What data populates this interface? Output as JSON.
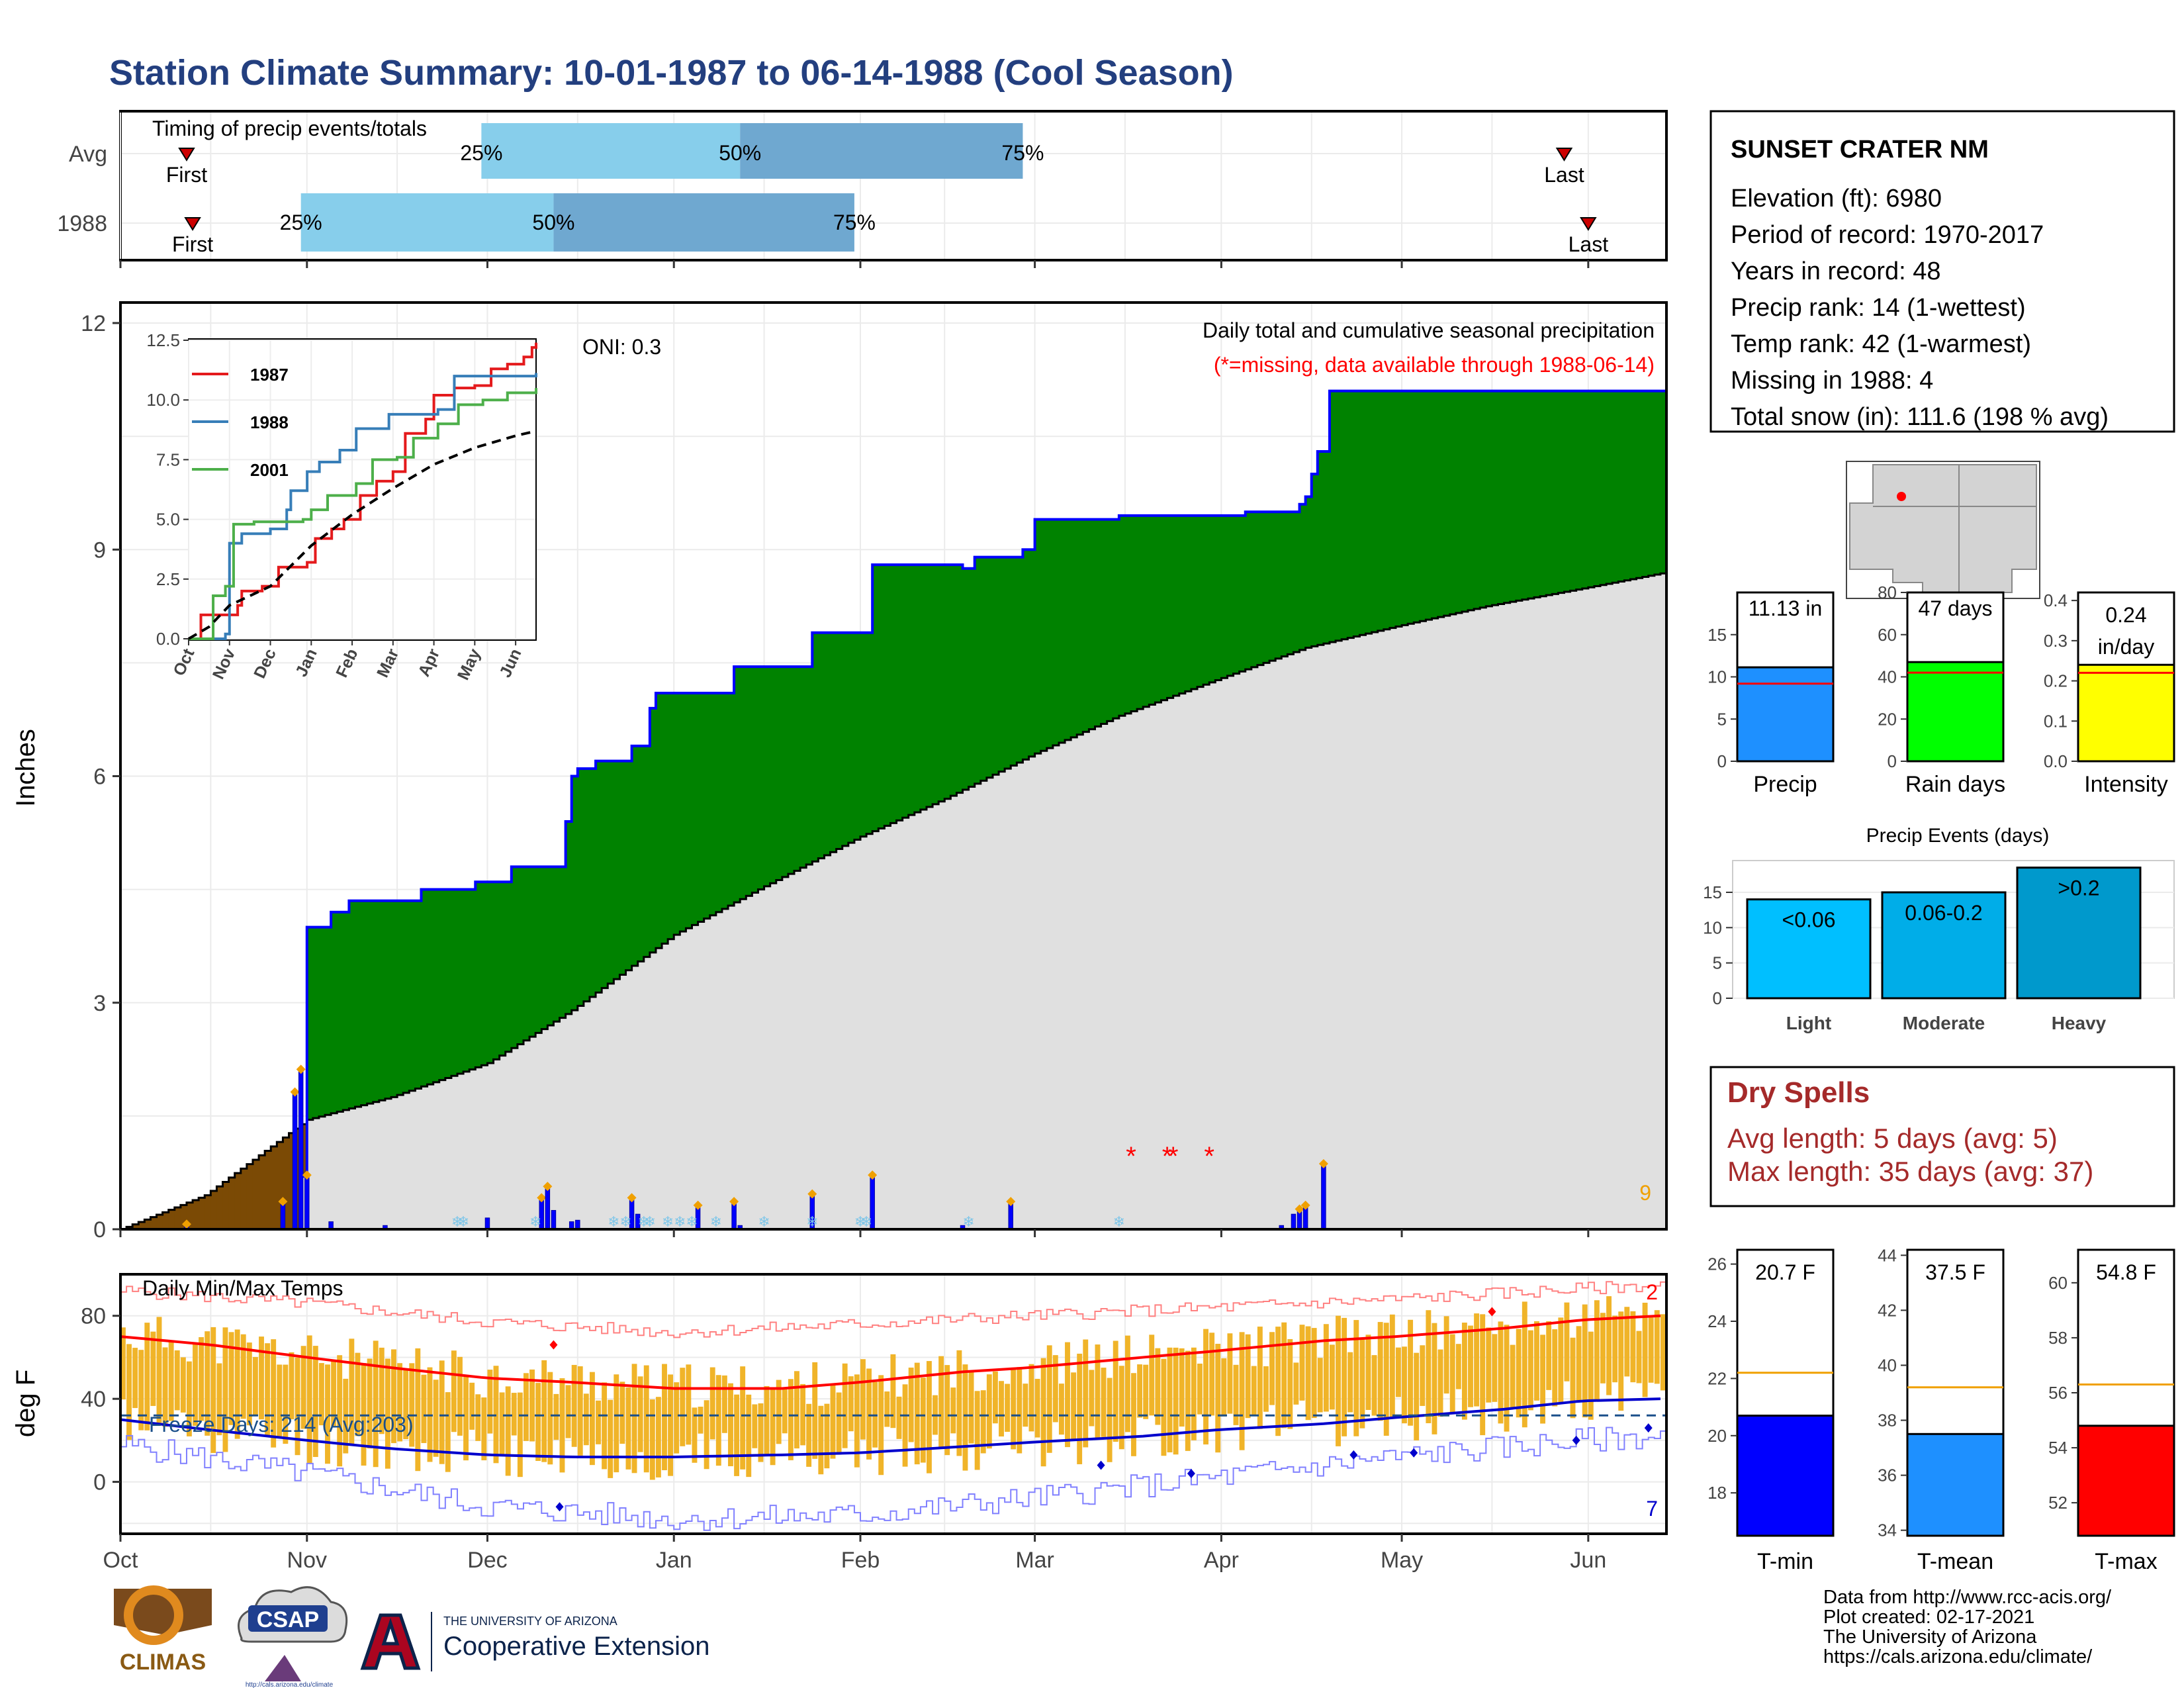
{
  "title": "Station Climate Summary: 10-01-1987 to 06-14-1988 (Cool Season)",
  "colors": {
    "title": "#233f7f",
    "green": "#008200",
    "brown": "#7b4a05",
    "gray_area": "#e0e0e0",
    "blue_bar": "#0000ff",
    "light_blue": "#87ceeb",
    "mid_blue": "#6fa8d0",
    "orange": "#f0a000",
    "red": "#ff0000",
    "dry_red": "#a52a2a"
  },
  "timing": {
    "title": "Timing of precip events/totals",
    "rows": [
      {
        "label": "Avg",
        "first_label": "First",
        "last_label": "Last",
        "first": "1987-10-12",
        "p25": "1987-11-30",
        "p50": "1988-01-12",
        "p75": "1988-02-28",
        "last": "1988-05-28"
      },
      {
        "label": "1988",
        "first_label": "First",
        "last_label": "Last",
        "first": "1987-10-13",
        "p25": "1987-10-31",
        "p50": "1987-12-12",
        "p75": "1988-01-31",
        "last": "1988-06-01"
      }
    ],
    "pct_labels": [
      "25%",
      "50%",
      "75%"
    ]
  },
  "station": {
    "name": "SUNSET CRATER NM",
    "lines": [
      "Elevation (ft): 6980",
      "Period of record: 1970-2017",
      "Years in record: 48",
      "Precip rank: 14 (1-wettest)",
      "Temp rank: 42 (1-warmest)",
      "Missing in 1988: 4",
      "Total snow (in): 111.6 (198 % avg)"
    ]
  },
  "chart_data": [
    {
      "id": "precip_main",
      "type": "area",
      "ylabel": "Inches",
      "ylim": [
        0,
        12
      ],
      "yticks": [
        0,
        3,
        6,
        9,
        12
      ],
      "x_months": [
        "Oct",
        "Nov",
        "Dec",
        "Jan",
        "Feb",
        "Mar",
        "Apr",
        "May",
        "Jun"
      ],
      "annotation_title": "Daily total and cumulative seasonal precipitation",
      "annotation_missing": "(*=missing, data available through 1988-06-14)",
      "oni": "ONI: 0.3",
      "corner_count": "9",
      "cumulative_1988": [
        [
          "1987-10-01",
          0
        ],
        [
          "1987-10-30",
          0
        ],
        [
          "1987-10-31",
          0.7
        ],
        [
          "1987-11-01",
          4.0
        ],
        [
          "1987-11-04",
          4.0
        ],
        [
          "1987-11-05",
          4.2
        ],
        [
          "1987-11-08",
          4.35
        ],
        [
          "1987-11-20",
          4.5
        ],
        [
          "1987-11-29",
          4.6
        ],
        [
          "1987-12-05",
          4.8
        ],
        [
          "1987-12-14",
          5.4
        ],
        [
          "1987-12-15",
          6.0
        ],
        [
          "1987-12-16",
          6.1
        ],
        [
          "1987-12-19",
          6.2
        ],
        [
          "1987-12-25",
          6.4
        ],
        [
          "1987-12-28",
          6.9
        ],
        [
          "1987-12-29",
          7.1
        ],
        [
          "1988-01-06",
          7.1
        ],
        [
          "1988-01-11",
          7.45
        ],
        [
          "1988-01-23",
          7.45
        ],
        [
          "1988-01-24",
          7.9
        ],
        [
          "1988-02-02",
          7.9
        ],
        [
          "1988-02-03",
          8.8
        ],
        [
          "1988-02-18",
          8.75
        ],
        [
          "1988-02-20",
          8.9
        ],
        [
          "1988-02-28",
          9.0
        ],
        [
          "1988-03-01",
          9.4
        ],
        [
          "1988-03-15",
          9.45
        ],
        [
          "1988-04-05",
          9.5
        ],
        [
          "1988-04-14",
          9.6
        ],
        [
          "1988-04-15",
          9.7
        ],
        [
          "1988-04-16",
          10.0
        ],
        [
          "1988-04-17",
          10.3
        ],
        [
          "1988-04-18",
          10.3
        ],
        [
          "1988-04-19",
          11.1
        ],
        [
          "1988-06-14",
          11.13
        ]
      ],
      "avg_cumulative": [
        [
          "1987-10-01",
          0
        ],
        [
          "1987-10-15",
          0.45
        ],
        [
          "1987-11-01",
          1.45
        ],
        [
          "1987-11-15",
          1.75
        ],
        [
          "1987-12-01",
          2.2
        ],
        [
          "1987-12-15",
          2.9
        ],
        [
          "1988-01-01",
          3.9
        ],
        [
          "1988-01-15",
          4.5
        ],
        [
          "1988-02-01",
          5.2
        ],
        [
          "1988-02-15",
          5.7
        ],
        [
          "1988-03-01",
          6.3
        ],
        [
          "1988-03-15",
          6.8
        ],
        [
          "1988-04-01",
          7.3
        ],
        [
          "1988-04-15",
          7.7
        ],
        [
          "1988-05-01",
          8.0
        ],
        [
          "1988-05-15",
          8.25
        ],
        [
          "1988-06-01",
          8.5
        ],
        [
          "1988-06-14",
          8.7
        ]
      ],
      "daily_bars": [
        [
          "1987-10-12",
          0.05
        ],
        [
          "1987-10-28",
          0.35
        ],
        [
          "1987-10-30",
          1.8
        ],
        [
          "1987-10-31",
          2.1
        ],
        [
          "1987-11-01",
          0.7
        ],
        [
          "1987-11-05",
          0.1
        ],
        [
          "1987-11-14",
          0.05
        ],
        [
          "1987-12-01",
          0.15
        ],
        [
          "1987-12-10",
          0.4
        ],
        [
          "1987-12-11",
          0.55
        ],
        [
          "1987-12-12",
          0.25
        ],
        [
          "1987-12-15",
          0.1
        ],
        [
          "1987-12-16",
          0.12
        ],
        [
          "1987-12-25",
          0.4
        ],
        [
          "1987-12-26",
          0.2
        ],
        [
          "1988-01-05",
          0.3
        ],
        [
          "1988-01-11",
          0.35
        ],
        [
          "1988-01-12",
          0.05
        ],
        [
          "1988-01-24",
          0.45
        ],
        [
          "1988-02-03",
          0.7
        ],
        [
          "1988-02-18",
          0.05
        ],
        [
          "1988-02-26",
          0.35
        ],
        [
          "1988-04-11",
          0.05
        ],
        [
          "1988-04-13",
          0.2
        ],
        [
          "1988-04-14",
          0.25
        ],
        [
          "1988-04-15",
          0.3
        ],
        [
          "1988-04-18",
          0.85
        ]
      ],
      "missing_days": [
        "1988-03-17",
        "1988-03-23",
        "1988-03-24",
        "1988-03-30"
      ]
    },
    {
      "id": "precip_inset",
      "type": "line",
      "ylim": [
        0,
        12.5
      ],
      "yticks": [
        0.0,
        2.5,
        5.0,
        7.5,
        10.0,
        12.5
      ],
      "x_months": [
        "Oct",
        "Nov",
        "Dec",
        "Jan",
        "Feb",
        "Mar",
        "Apr",
        "May",
        "Jun"
      ],
      "series": [
        {
          "name": "1987",
          "color": "#e41a1c",
          "points": [
            [
              0,
              0
            ],
            [
              0.3,
              1.0
            ],
            [
              1.2,
              1.4
            ],
            [
              1.3,
              2.0
            ],
            [
              1.8,
              2.2
            ],
            [
              2.2,
              3.0
            ],
            [
              2.9,
              3.2
            ],
            [
              3.1,
              4.2
            ],
            [
              3.5,
              4.6
            ],
            [
              3.8,
              5.0
            ],
            [
              4.2,
              6.0
            ],
            [
              4.6,
              6.6
            ],
            [
              5.0,
              7.0
            ],
            [
              5.3,
              8.6
            ],
            [
              5.8,
              9.2
            ],
            [
              6.0,
              10.2
            ],
            [
              6.5,
              10.5
            ],
            [
              7.0,
              10.6
            ],
            [
              7.4,
              11.3
            ],
            [
              7.8,
              11.5
            ],
            [
              8.2,
              11.8
            ],
            [
              8.4,
              12.2
            ],
            [
              8.5,
              12.4
            ]
          ]
        },
        {
          "name": "1988",
          "color": "#377eb8",
          "points": [
            [
              0,
              0
            ],
            [
              0.9,
              0.2
            ],
            [
              1.0,
              4.0
            ],
            [
              1.3,
              4.4
            ],
            [
              2.0,
              4.6
            ],
            [
              2.4,
              5.4
            ],
            [
              2.5,
              6.2
            ],
            [
              2.9,
              7.0
            ],
            [
              3.2,
              7.4
            ],
            [
              3.7,
              7.9
            ],
            [
              4.1,
              8.8
            ],
            [
              4.9,
              9.4
            ],
            [
              6.1,
              9.6
            ],
            [
              6.5,
              11.0
            ],
            [
              8.5,
              11.13
            ]
          ]
        },
        {
          "name": "2001",
          "color": "#4daf4a",
          "points": [
            [
              0,
              0
            ],
            [
              0.6,
              1.8
            ],
            [
              0.9,
              2.2
            ],
            [
              1.1,
              4.8
            ],
            [
              1.6,
              4.9
            ],
            [
              2.8,
              5.0
            ],
            [
              3.0,
              5.4
            ],
            [
              3.4,
              6.0
            ],
            [
              4.1,
              6.5
            ],
            [
              4.5,
              7.5
            ],
            [
              5.1,
              7.6
            ],
            [
              5.5,
              8.4
            ],
            [
              6.1,
              9.0
            ],
            [
              6.6,
              9.8
            ],
            [
              7.2,
              10.0
            ],
            [
              7.8,
              10.3
            ],
            [
              8.5,
              10.5
            ]
          ]
        }
      ],
      "average": [
        [
          0,
          0
        ],
        [
          0.5,
          0.5
        ],
        [
          1.0,
          1.4
        ],
        [
          1.5,
          1.8
        ],
        [
          2.0,
          2.2
        ],
        [
          3.0,
          3.9
        ],
        [
          4.0,
          5.2
        ],
        [
          5.0,
          6.3
        ],
        [
          6.0,
          7.3
        ],
        [
          7.0,
          8.0
        ],
        [
          8.0,
          8.5
        ],
        [
          8.5,
          8.7
        ]
      ]
    },
    {
      "id": "temps",
      "type": "bar",
      "title": "Daily Min/Max Temps",
      "ylabel": "deg F",
      "ylim": [
        -25,
        100
      ],
      "yticks": [
        0,
        40,
        80
      ],
      "x_months": [
        "Oct",
        "Nov",
        "Dec",
        "Jan",
        "Feb",
        "Mar",
        "Apr",
        "May",
        "Jun"
      ],
      "freeze_label": "Freeze Days: 214 (Avg:203)",
      "freeze_level": 32,
      "corner_max_count": "2",
      "corner_min_count": "7",
      "avg_max_curve": [
        [
          0,
          70
        ],
        [
          15,
          66
        ],
        [
          31,
          60
        ],
        [
          45,
          55
        ],
        [
          61,
          50
        ],
        [
          75,
          48
        ],
        [
          92,
          45
        ],
        [
          110,
          45
        ],
        [
          123,
          48
        ],
        [
          140,
          53
        ],
        [
          151,
          55
        ],
        [
          170,
          60
        ],
        [
          182,
          63
        ],
        [
          200,
          68
        ],
        [
          212,
          70
        ],
        [
          230,
          74
        ],
        [
          243,
          78
        ],
        [
          256,
          80
        ]
      ],
      "avg_min_curve": [
        [
          0,
          30
        ],
        [
          15,
          25
        ],
        [
          31,
          20
        ],
        [
          45,
          16
        ],
        [
          61,
          13
        ],
        [
          75,
          12
        ],
        [
          92,
          12
        ],
        [
          110,
          13
        ],
        [
          123,
          14
        ],
        [
          140,
          17
        ],
        [
          151,
          19
        ],
        [
          170,
          22
        ],
        [
          182,
          25
        ],
        [
          200,
          28
        ],
        [
          212,
          31
        ],
        [
          230,
          35
        ],
        [
          243,
          39
        ],
        [
          256,
          40
        ]
      ],
      "record_max_curve": [
        [
          0,
          92
        ],
        [
          31,
          86
        ],
        [
          61,
          77
        ],
        [
          92,
          72
        ],
        [
          123,
          76
        ],
        [
          151,
          80
        ],
        [
          182,
          84
        ],
        [
          212,
          88
        ],
        [
          243,
          93
        ],
        [
          256,
          95
        ]
      ],
      "record_min_curve": [
        [
          0,
          18
        ],
        [
          31,
          4
        ],
        [
          61,
          -12
        ],
        [
          92,
          -18
        ],
        [
          123,
          -16
        ],
        [
          151,
          -8
        ],
        [
          182,
          2
        ],
        [
          212,
          12
        ],
        [
          243,
          20
        ],
        [
          256,
          22
        ]
      ]
    },
    {
      "id": "summary_precip",
      "type": "bar",
      "panels": [
        {
          "label": "Precip",
          "value_label": "11.13 in",
          "value": 11.13,
          "avg": 9.2,
          "ymax": 20,
          "ticks": [
            0,
            5,
            10,
            15
          ],
          "color": "#1e90ff"
        },
        {
          "label": "Rain days",
          "value_label": "47 days",
          "value": 47,
          "avg": 42,
          "ymax": 80,
          "ticks": [
            0,
            20,
            40,
            60,
            80
          ],
          "color": "#00ff00"
        },
        {
          "label": "Intensity",
          "value_label_1": "0.24",
          "value_label_2": "in/day",
          "value": 0.24,
          "avg": 0.22,
          "ymax": 0.42,
          "ticks": [
            0.0,
            0.1,
            0.2,
            0.3,
            0.4
          ],
          "color": "#ffff00"
        }
      ]
    },
    {
      "id": "precip_events",
      "type": "bar",
      "title": "Precip Events (days)",
      "categories": [
        "Light",
        "Moderate",
        "Heavy"
      ],
      "bar_labels": [
        "<0.06",
        "0.06-0.2",
        ">0.2"
      ],
      "values": [
        14,
        15,
        18.5
      ],
      "ylim": [
        0,
        19.5
      ],
      "yticks": [
        0,
        5,
        10,
        15
      ],
      "colors": [
        "#00bfff",
        "#00ade8",
        "#0099cc"
      ]
    },
    {
      "id": "summary_temp",
      "type": "bar",
      "panels": [
        {
          "label": "T-min",
          "value_label": "20.7 F",
          "value": 20.7,
          "avg": 22.2,
          "ymin": 16.5,
          "ymax": 26.5,
          "ticks": [
            18,
            20,
            22,
            24,
            26
          ],
          "color": "#0000ff"
        },
        {
          "label": "T-mean",
          "value_label": "37.5 F",
          "value": 37.5,
          "avg": 39.2,
          "ymin": 33.8,
          "ymax": 44.2,
          "ticks": [
            34,
            36,
            38,
            40,
            42,
            44
          ],
          "color": "#1e90ff"
        },
        {
          "label": "T-max",
          "value_label": "54.8 F",
          "value": 54.8,
          "avg": 56.3,
          "ymin": 50.8,
          "ymax": 61.2,
          "ticks": [
            52,
            54,
            56,
            58,
            60
          ],
          "color": "#ff0000"
        }
      ]
    }
  ],
  "dry_spells": {
    "title": "Dry Spells",
    "avg": "Avg length: 5 days (avg: 5)",
    "max": "Max length: 35 days (avg: 37)"
  },
  "footer": {
    "lines": [
      "Data from http://www.rcc-acis.org/",
      "Plot created: 02-17-2021",
      "The University of Arizona",
      "https://cals.arizona.edu/climate/"
    ],
    "climas": "CLIMAS",
    "csap": "CSAP",
    "csap_url": "http://cals.arizona.edu/climate",
    "ua_small": "THE UNIVERSITY OF ARIZONA",
    "ua_big": "Cooperative Extension"
  }
}
